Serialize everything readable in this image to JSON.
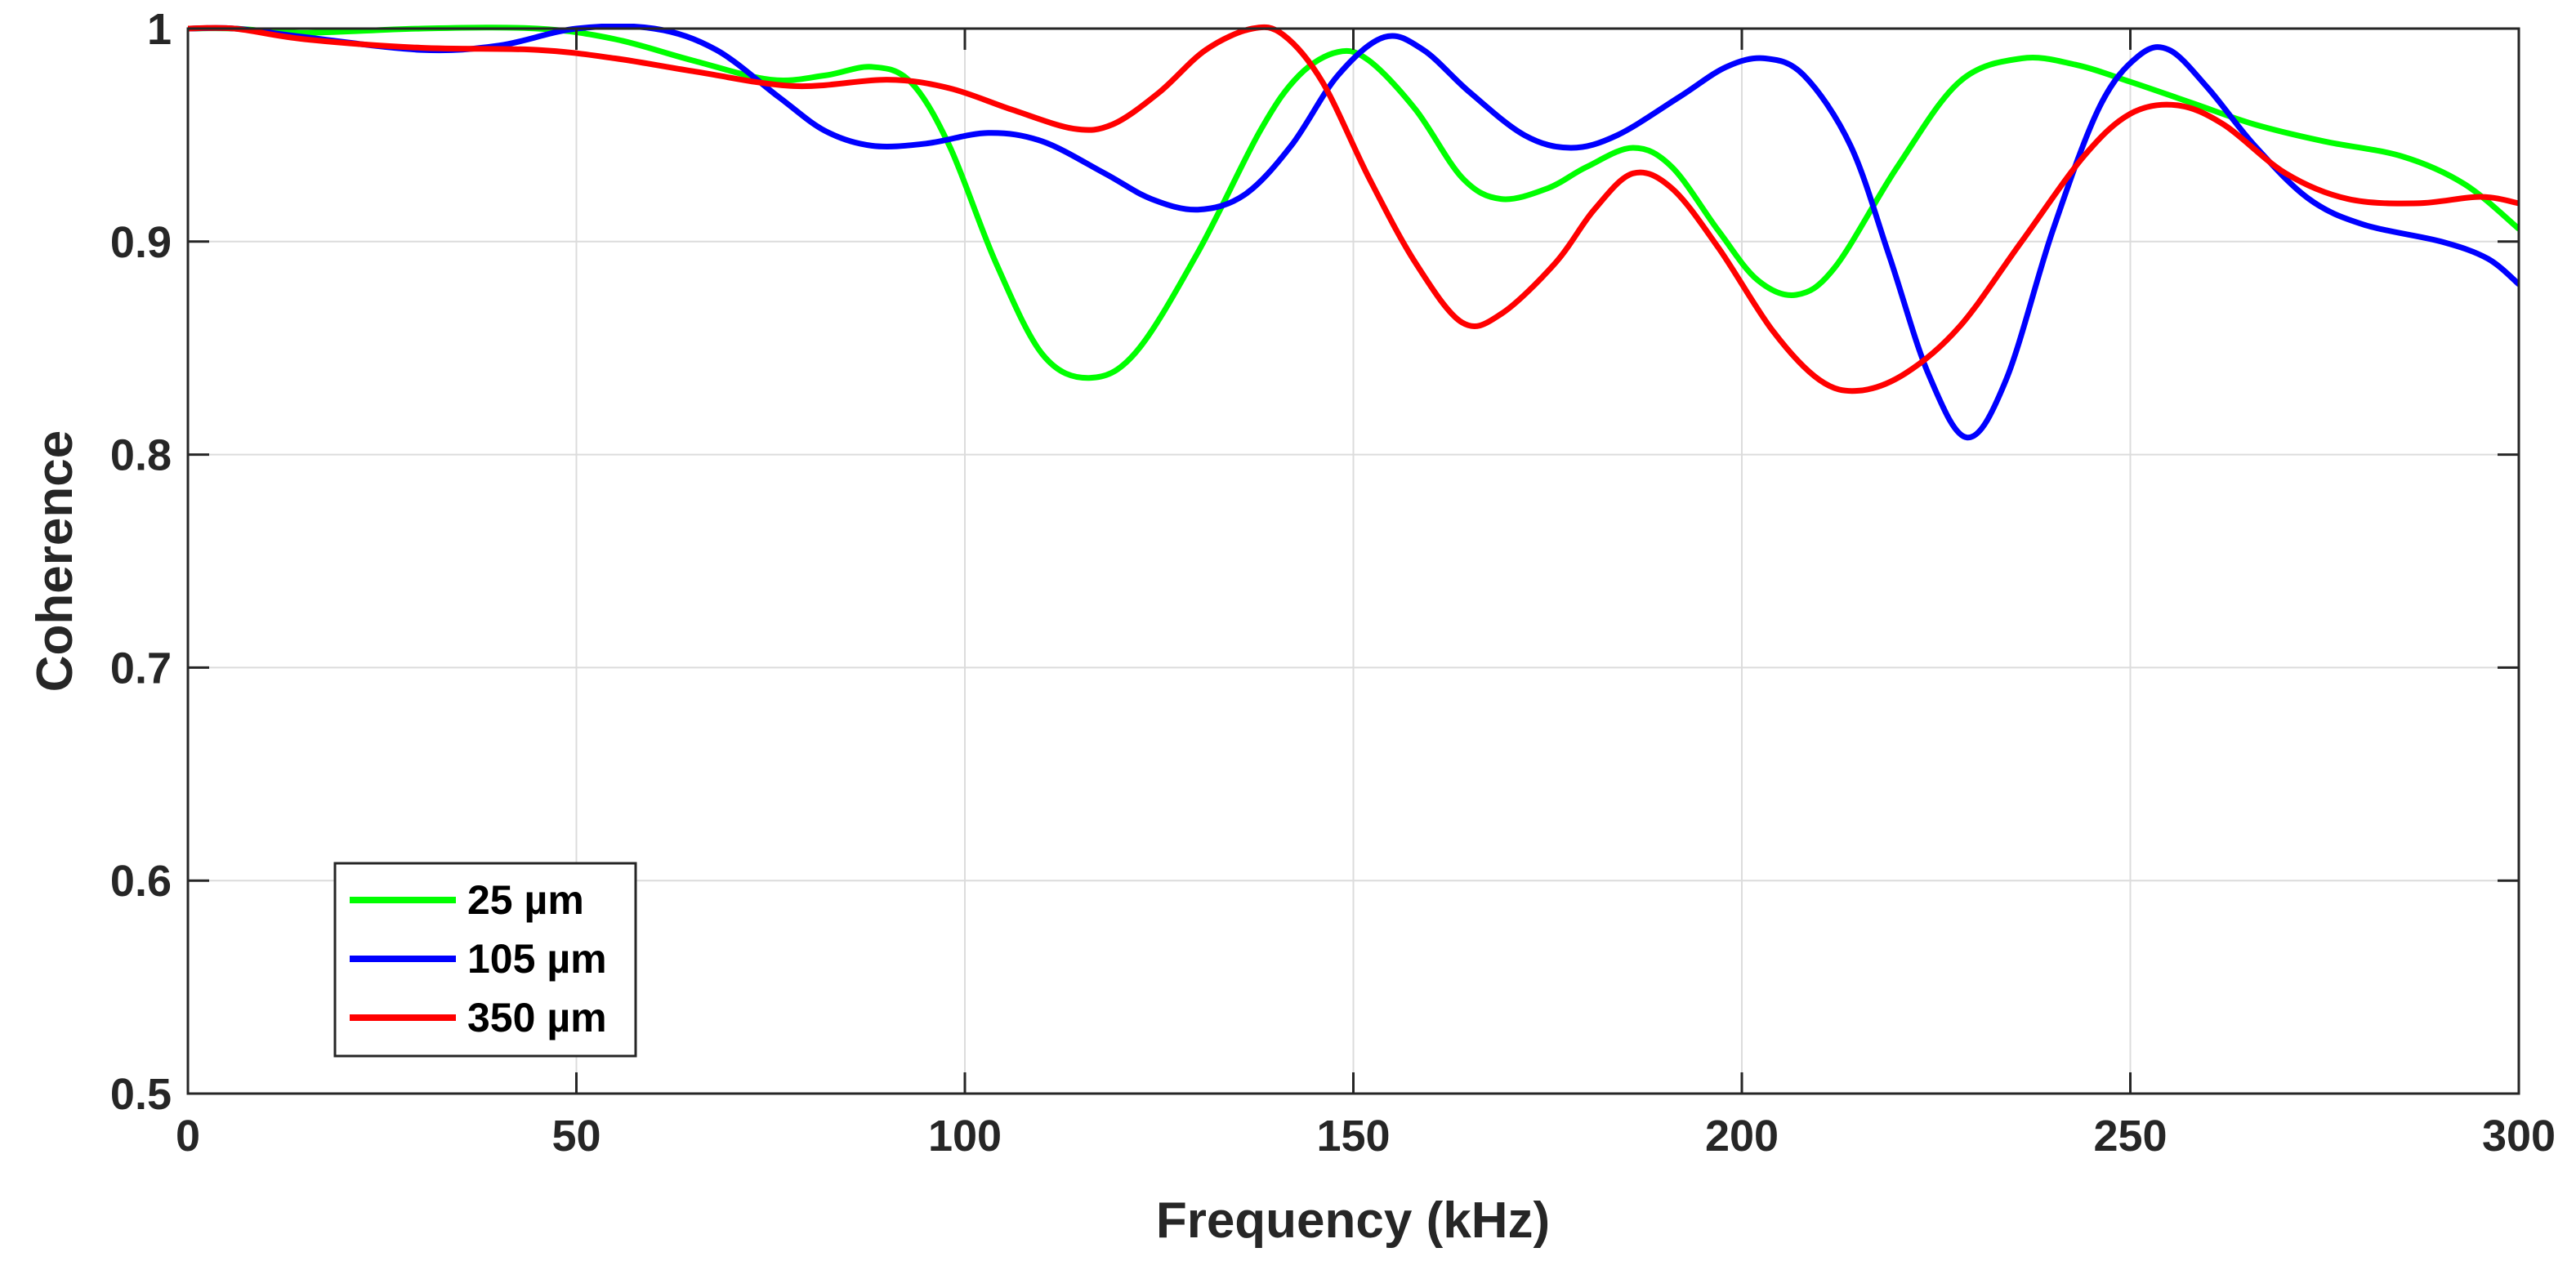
{
  "chart_data": {
    "type": "line",
    "title": "",
    "xlabel": "Frequency (kHz)",
    "ylabel": "Coherence",
    "xlim": [
      0,
      300
    ],
    "ylim": [
      0.5,
      1
    ],
    "xticks": [
      "0",
      "50",
      "100",
      "150",
      "200",
      "250",
      "300"
    ],
    "yticks": [
      "0.5",
      "0.6",
      "0.7",
      "0.8",
      "0.9",
      "1"
    ],
    "grid": true,
    "legend_position": "bottom-left",
    "series": [
      {
        "name": "25 µm",
        "color": "#00ff00",
        "points": [
          [
            0,
            1.0
          ],
          [
            6,
            1.0
          ],
          [
            15,
            0.998
          ],
          [
            30,
            1.0
          ],
          [
            45,
            1.0
          ],
          [
            55,
            0.995
          ],
          [
            65,
            0.985
          ],
          [
            75,
            0.976
          ],
          [
            82,
            0.978
          ],
          [
            88,
            0.982
          ],
          [
            93,
            0.975
          ],
          [
            98,
            0.945
          ],
          [
            104,
            0.89
          ],
          [
            110,
            0.847
          ],
          [
            116,
            0.836
          ],
          [
            122,
            0.848
          ],
          [
            130,
            0.895
          ],
          [
            138,
            0.952
          ],
          [
            143,
            0.978
          ],
          [
            148,
            0.989
          ],
          [
            152,
            0.985
          ],
          [
            158,
            0.962
          ],
          [
            164,
            0.93
          ],
          [
            169,
            0.92
          ],
          [
            175,
            0.925
          ],
          [
            180,
            0.935
          ],
          [
            186,
            0.944
          ],
          [
            191,
            0.935
          ],
          [
            197,
            0.905
          ],
          [
            202,
            0.882
          ],
          [
            207,
            0.875
          ],
          [
            212,
            0.888
          ],
          [
            220,
            0.935
          ],
          [
            228,
            0.975
          ],
          [
            236,
            0.986
          ],
          [
            243,
            0.983
          ],
          [
            250,
            0.975
          ],
          [
            258,
            0.965
          ],
          [
            266,
            0.955
          ],
          [
            275,
            0.947
          ],
          [
            285,
            0.94
          ],
          [
            293,
            0.927
          ],
          [
            300,
            0.906
          ]
        ]
      },
      {
        "name": "105 µm",
        "color": "#0000ff",
        "points": [
          [
            0,
            1.0
          ],
          [
            6,
            1.0
          ],
          [
            15,
            0.996
          ],
          [
            30,
            0.99
          ],
          [
            40,
            0.992
          ],
          [
            50,
            1.0
          ],
          [
            60,
            1.0
          ],
          [
            68,
            0.99
          ],
          [
            76,
            0.968
          ],
          [
            82,
            0.952
          ],
          [
            88,
            0.945
          ],
          [
            95,
            0.946
          ],
          [
            103,
            0.951
          ],
          [
            110,
            0.947
          ],
          [
            118,
            0.932
          ],
          [
            124,
            0.92
          ],
          [
            130,
            0.915
          ],
          [
            136,
            0.922
          ],
          [
            142,
            0.945
          ],
          [
            148,
            0.978
          ],
          [
            154,
            0.996
          ],
          [
            159,
            0.99
          ],
          [
            165,
            0.97
          ],
          [
            172,
            0.95
          ],
          [
            178,
            0.944
          ],
          [
            184,
            0.95
          ],
          [
            192,
            0.968
          ],
          [
            198,
            0.982
          ],
          [
            203,
            0.986
          ],
          [
            208,
            0.978
          ],
          [
            214,
            0.945
          ],
          [
            219,
            0.893
          ],
          [
            224,
            0.838
          ],
          [
            229,
            0.808
          ],
          [
            234,
            0.835
          ],
          [
            240,
            0.905
          ],
          [
            246,
            0.963
          ],
          [
            251,
            0.987
          ],
          [
            255,
            0.99
          ],
          [
            260,
            0.972
          ],
          [
            266,
            0.945
          ],
          [
            273,
            0.92
          ],
          [
            280,
            0.908
          ],
          [
            290,
            0.9
          ],
          [
            296,
            0.892
          ],
          [
            300,
            0.88
          ]
        ]
      },
      {
        "name": "350 µm",
        "color": "#ff0000",
        "points": [
          [
            0,
            1.0
          ],
          [
            6,
            1.0
          ],
          [
            15,
            0.995
          ],
          [
            30,
            0.991
          ],
          [
            45,
            0.99
          ],
          [
            55,
            0.986
          ],
          [
            65,
            0.98
          ],
          [
            78,
            0.973
          ],
          [
            90,
            0.976
          ],
          [
            98,
            0.972
          ],
          [
            106,
            0.962
          ],
          [
            114,
            0.953
          ],
          [
            119,
            0.955
          ],
          [
            125,
            0.97
          ],
          [
            131,
            0.99
          ],
          [
            137,
            1.0
          ],
          [
            141,
            0.997
          ],
          [
            146,
            0.975
          ],
          [
            152,
            0.93
          ],
          [
            158,
            0.89
          ],
          [
            164,
            0.862
          ],
          [
            169,
            0.866
          ],
          [
            176,
            0.89
          ],
          [
            181,
            0.915
          ],
          [
            186,
            0.932
          ],
          [
            191,
            0.925
          ],
          [
            197,
            0.897
          ],
          [
            204,
            0.858
          ],
          [
            210,
            0.835
          ],
          [
            215,
            0.83
          ],
          [
            221,
            0.838
          ],
          [
            228,
            0.86
          ],
          [
            236,
            0.9
          ],
          [
            244,
            0.94
          ],
          [
            250,
            0.96
          ],
          [
            256,
            0.964
          ],
          [
            262,
            0.955
          ],
          [
            270,
            0.932
          ],
          [
            278,
            0.92
          ],
          [
            287,
            0.918
          ],
          [
            295,
            0.921
          ],
          [
            300,
            0.918
          ]
        ]
      }
    ]
  }
}
